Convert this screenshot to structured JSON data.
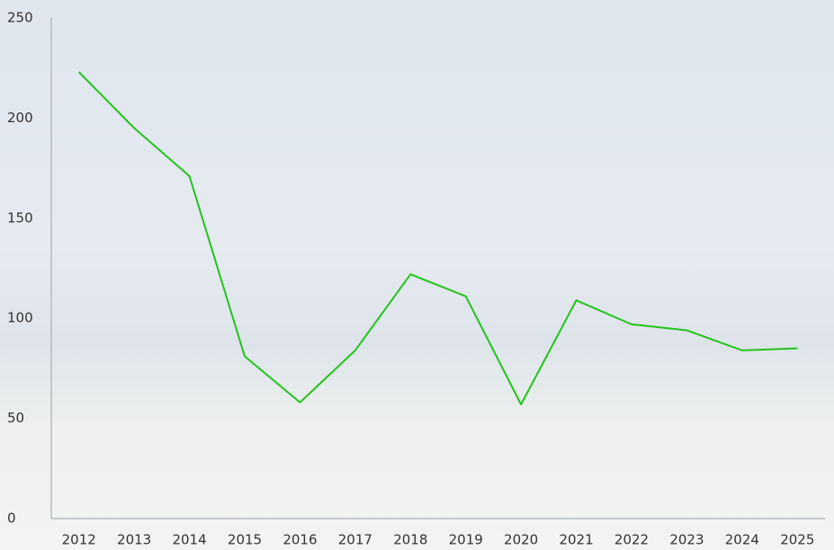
{
  "chart_data": {
    "type": "line",
    "categories": [
      "2012",
      "2013",
      "2014",
      "2015",
      "2016",
      "2017",
      "2018",
      "2019",
      "2020",
      "2021",
      "2022",
      "2023",
      "2024",
      "2025"
    ],
    "values": [
      223,
      195,
      171,
      81,
      58,
      84,
      122,
      111,
      57,
      109,
      97,
      94,
      84,
      85
    ],
    "color": "#22c41a",
    "ylim": [
      0,
      250
    ],
    "yticks": [
      0,
      50,
      100,
      150,
      200,
      250
    ],
    "grid": false
  }
}
